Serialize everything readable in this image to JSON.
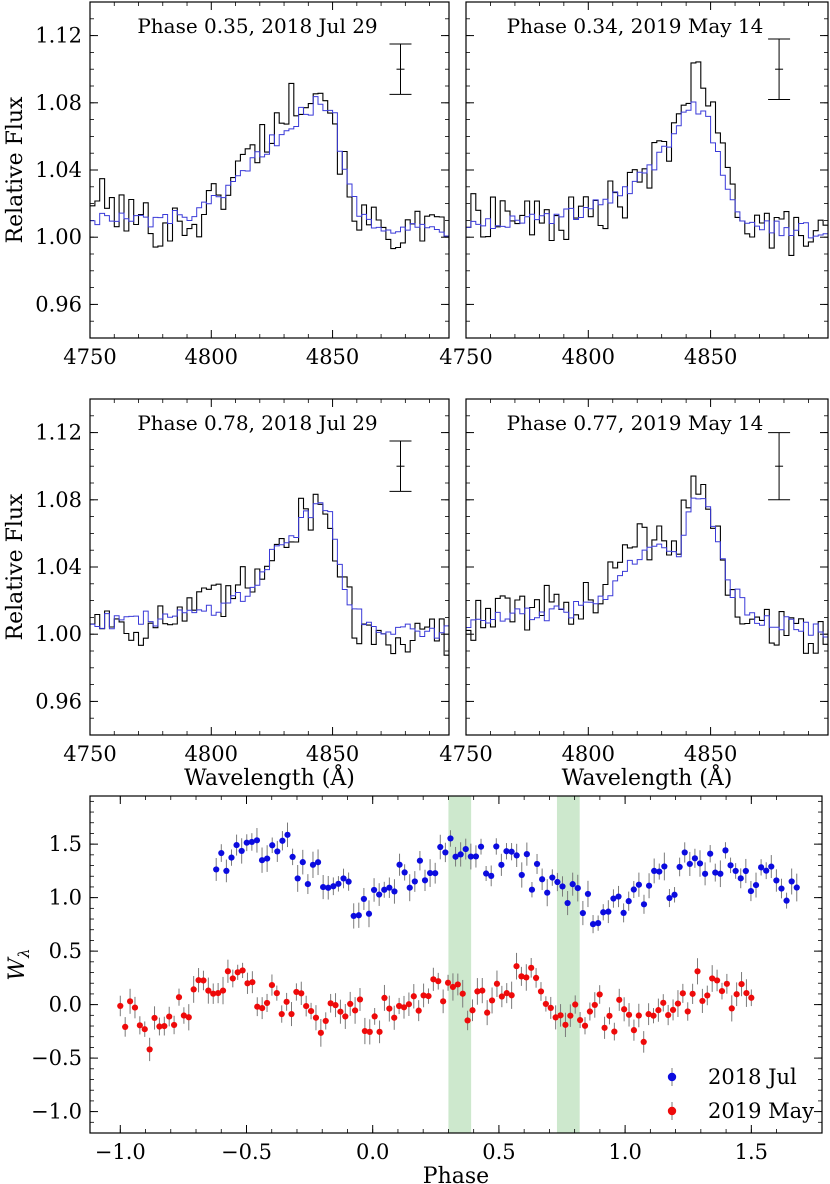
{
  "chart_data": [
    {
      "type": "line",
      "title": "Phase 0.35, 2018 Jul 29",
      "xlabel": "",
      "ylabel": "Relative Flux",
      "xlim": [
        4750,
        4898
      ],
      "ylim": [
        0.94,
        1.14
      ],
      "x_ticks": [
        "4750",
        "4800",
        "4850"
      ],
      "y_ticks": [
        "0.96",
        "1.00",
        "1.04",
        "1.08",
        "1.12"
      ],
      "errorbar": {
        "x": 4878,
        "y": 1.1,
        "err": 0.015
      },
      "series": [
        {
          "name": "observed",
          "color": "#000000",
          "anchors": [
            [
              4750,
              1.025
            ],
            [
              4765,
              1.012
            ],
            [
              4780,
              1.006
            ],
            [
              4795,
              1.012
            ],
            [
              4805,
              1.03
            ],
            [
              4815,
              1.05
            ],
            [
              4825,
              1.066
            ],
            [
              4835,
              1.085
            ],
            [
              4842,
              1.094
            ],
            [
              4848,
              1.08
            ],
            [
              4855,
              1.03
            ],
            [
              4862,
              1.008
            ],
            [
              4875,
              1.004
            ],
            [
              4898,
              1.0
            ]
          ]
        },
        {
          "name": "model",
          "color": "#3a3ad8",
          "anchors": [
            [
              4750,
              1.012
            ],
            [
              4765,
              1.01
            ],
            [
              4780,
              1.01
            ],
            [
              4795,
              1.015
            ],
            [
              4805,
              1.025
            ],
            [
              4815,
              1.042
            ],
            [
              4825,
              1.058
            ],
            [
              4835,
              1.072
            ],
            [
              4843,
              1.08
            ],
            [
              4850,
              1.07
            ],
            [
              4856,
              1.028
            ],
            [
              4862,
              1.012
            ],
            [
              4875,
              1.006
            ],
            [
              4898,
              1.004
            ]
          ]
        }
      ]
    },
    {
      "type": "line",
      "title": "Phase 0.34, 2019 May 14",
      "xlabel": "",
      "ylabel": "",
      "xlim": [
        4750,
        4898
      ],
      "ylim": [
        0.94,
        1.14
      ],
      "x_ticks": [
        "4750",
        "4800",
        "4850"
      ],
      "y_ticks": [
        "0.96",
        "1.00",
        "1.04",
        "1.08",
        "1.12"
      ],
      "errorbar": {
        "x": 4878,
        "y": 1.1,
        "err": 0.018
      },
      "series": [
        {
          "name": "observed",
          "color": "#000000",
          "anchors": [
            [
              4750,
              1.012
            ],
            [
              4765,
              1.015
            ],
            [
              4780,
              1.008
            ],
            [
              4795,
              1.012
            ],
            [
              4805,
              1.018
            ],
            [
              4815,
              1.025
            ],
            [
              4825,
              1.04
            ],
            [
              4833,
              1.06
            ],
            [
              4840,
              1.092
            ],
            [
              4847,
              1.09
            ],
            [
              4855,
              1.04
            ],
            [
              4862,
              1.015
            ],
            [
              4875,
              1.004
            ],
            [
              4898,
              0.998
            ]
          ]
        },
        {
          "name": "model",
          "color": "#3a3ad8",
          "anchors": [
            [
              4750,
              1.008
            ],
            [
              4765,
              1.01
            ],
            [
              4780,
              1.01
            ],
            [
              4795,
              1.014
            ],
            [
              4805,
              1.02
            ],
            [
              4815,
              1.028
            ],
            [
              4825,
              1.04
            ],
            [
              4833,
              1.058
            ],
            [
              4840,
              1.08
            ],
            [
              4847,
              1.074
            ],
            [
              4855,
              1.035
            ],
            [
              4862,
              1.014
            ],
            [
              4875,
              1.006
            ],
            [
              4898,
              1.002
            ]
          ]
        }
      ]
    },
    {
      "type": "line",
      "title": "Phase 0.78, 2018 Jul 29",
      "xlabel": "Wavelength (Å)",
      "ylabel": "Relative Flux",
      "xlim": [
        4750,
        4898
      ],
      "ylim": [
        0.94,
        1.14
      ],
      "x_ticks": [
        "4750",
        "4800",
        "4850"
      ],
      "y_ticks": [
        "0.96",
        "1.00",
        "1.04",
        "1.08",
        "1.12"
      ],
      "errorbar": {
        "x": 4878,
        "y": 1.1,
        "err": 0.015
      },
      "series": [
        {
          "name": "observed",
          "color": "#000000",
          "anchors": [
            [
              4750,
              1.012
            ],
            [
              4765,
              1.005
            ],
            [
              4780,
              1.008
            ],
            [
              4795,
              1.015
            ],
            [
              4808,
              1.022
            ],
            [
              4818,
              1.035
            ],
            [
              4826,
              1.06
            ],
            [
              4834,
              1.065
            ],
            [
              4842,
              1.078
            ],
            [
              4848,
              1.068
            ],
            [
              4856,
              1.015
            ],
            [
              4862,
              1.0
            ],
            [
              4875,
              1.0
            ],
            [
              4898,
              0.998
            ]
          ]
        },
        {
          "name": "model",
          "color": "#3a3ad8",
          "anchors": [
            [
              4750,
              1.008
            ],
            [
              4765,
              1.008
            ],
            [
              4780,
              1.01
            ],
            [
              4795,
              1.014
            ],
            [
              4808,
              1.02
            ],
            [
              4818,
              1.03
            ],
            [
              4826,
              1.052
            ],
            [
              4834,
              1.062
            ],
            [
              4842,
              1.078
            ],
            [
              4848,
              1.07
            ],
            [
              4856,
              1.018
            ],
            [
              4862,
              1.006
            ],
            [
              4875,
              1.004
            ],
            [
              4898,
              1.002
            ]
          ]
        }
      ]
    },
    {
      "type": "line",
      "title": "Phase 0.77, 2019 May 14",
      "xlabel": "Wavelength (Å)",
      "ylabel": "",
      "xlim": [
        4750,
        4898
      ],
      "ylim": [
        0.94,
        1.14
      ],
      "x_ticks": [
        "4750",
        "4800",
        "4850"
      ],
      "y_ticks": [
        "0.96",
        "1.00",
        "1.04",
        "1.08",
        "1.12"
      ],
      "errorbar": {
        "x": 4878,
        "y": 1.1,
        "err": 0.02
      },
      "series": [
        {
          "name": "observed",
          "color": "#000000",
          "anchors": [
            [
              4750,
              1.008
            ],
            [
              4765,
              1.012
            ],
            [
              4780,
              1.015
            ],
            [
              4795,
              1.018
            ],
            [
              4808,
              1.03
            ],
            [
              4818,
              1.055
            ],
            [
              4828,
              1.055
            ],
            [
              4836,
              1.05
            ],
            [
              4841,
              1.098
            ],
            [
              4847,
              1.085
            ],
            [
              4856,
              1.03
            ],
            [
              4865,
              1.01
            ],
            [
              4880,
              1.004
            ],
            [
              4898,
              0.995
            ]
          ]
        },
        {
          "name": "model",
          "color": "#3a3ad8",
          "anchors": [
            [
              4750,
              1.006
            ],
            [
              4765,
              1.01
            ],
            [
              4780,
              1.012
            ],
            [
              4795,
              1.015
            ],
            [
              4808,
              1.025
            ],
            [
              4818,
              1.045
            ],
            [
              4828,
              1.05
            ],
            [
              4836,
              1.048
            ],
            [
              4841,
              1.085
            ],
            [
              4847,
              1.078
            ],
            [
              4856,
              1.03
            ],
            [
              4865,
              1.012
            ],
            [
              4880,
              1.006
            ],
            [
              4898,
              1.002
            ]
          ]
        }
      ]
    },
    {
      "type": "scatter",
      "title": "",
      "xlabel": "Phase",
      "ylabel": "W_λ",
      "xlim": [
        -1.12,
        1.78
      ],
      "ylim": [
        -1.2,
        1.95
      ],
      "x_ticks": [
        "−1.0",
        "−0.5",
        "0.0",
        "0.5",
        "1.0",
        "1.5"
      ],
      "y_ticks": [
        "−1.0",
        "−0.5",
        "0.0",
        "0.5",
        "1.0",
        "1.5"
      ],
      "highlight_bands": [
        [
          0.3,
          0.39
        ],
        [
          0.73,
          0.82
        ]
      ],
      "band_color": "#c8e6c8",
      "legend_position": "lower-right",
      "series": [
        {
          "name": "2018 Jul",
          "color": "#0b0bdf",
          "x_range": [
            -0.62,
            1.68
          ],
          "n": 115,
          "anchors": [
            [
              -0.62,
              1.28
            ],
            [
              -0.5,
              1.42
            ],
            [
              -0.38,
              1.55
            ],
            [
              -0.3,
              1.35
            ],
            [
              -0.2,
              1.22
            ],
            [
              -0.1,
              1.02
            ],
            [
              0.0,
              0.92
            ],
            [
              0.1,
              1.18
            ],
            [
              0.2,
              1.24
            ],
            [
              0.32,
              1.42
            ],
            [
              0.45,
              1.35
            ],
            [
              0.55,
              1.46
            ],
            [
              0.65,
              1.18
            ],
            [
              0.75,
              1.08
            ],
            [
              0.85,
              0.95
            ],
            [
              0.95,
              0.82
            ],
            [
              1.05,
              1.02
            ],
            [
              1.15,
              1.12
            ],
            [
              1.25,
              1.28
            ],
            [
              1.35,
              1.32
            ],
            [
              1.45,
              1.25
            ],
            [
              1.55,
              1.18
            ],
            [
              1.68,
              1.0
            ]
          ]
        },
        {
          "name": "2019 May",
          "color": "#ee0a0a",
          "x_range": [
            -1.0,
            1.5
          ],
          "n": 130,
          "anchors": [
            [
              -1.0,
              0.0
            ],
            [
              -0.9,
              -0.3
            ],
            [
              -0.8,
              -0.1
            ],
            [
              -0.7,
              0.1
            ],
            [
              -0.6,
              0.12
            ],
            [
              -0.5,
              0.22
            ],
            [
              -0.4,
              0.05
            ],
            [
              -0.3,
              0.02
            ],
            [
              -0.2,
              -0.15
            ],
            [
              -0.1,
              0.0
            ],
            [
              0.0,
              -0.2
            ],
            [
              0.1,
              0.05
            ],
            [
              0.2,
              0.12
            ],
            [
              0.3,
              0.1
            ],
            [
              0.4,
              -0.05
            ],
            [
              0.5,
              0.18
            ],
            [
              0.6,
              0.25
            ],
            [
              0.7,
              0.1
            ],
            [
              0.8,
              -0.15
            ],
            [
              0.9,
              -0.05
            ],
            [
              1.0,
              -0.12
            ],
            [
              1.1,
              -0.25
            ],
            [
              1.2,
              0.02
            ],
            [
              1.3,
              0.18
            ],
            [
              1.4,
              0.12
            ],
            [
              1.5,
              0.05
            ]
          ]
        }
      ]
    }
  ]
}
